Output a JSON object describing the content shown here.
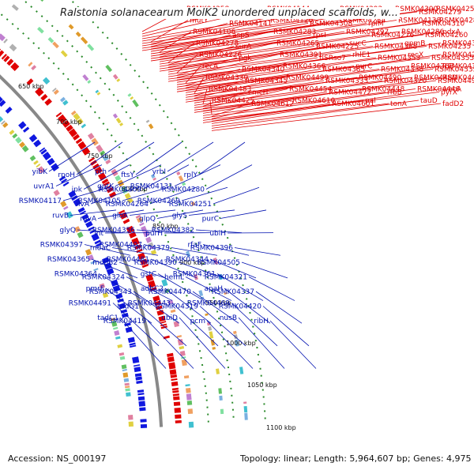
{
  "title": "Ralstonia solanacearum MolK2 unordered unplaced scaffolds, w...",
  "footer": {
    "accession": "Accession: NS_000197",
    "topology": "Topology: linear; Length: 5,964,607 bp; Genes: 4,975"
  },
  "colors": {
    "forward": "#e00000",
    "reverse": "#1018e0",
    "backbone": "#888888",
    "gc_dots": "#2a8a2a",
    "red_label": "#e00000",
    "blue_label": "#0010b0"
  },
  "ticks": [
    "650 kbp",
    "700 kbp",
    "750 kbp",
    "800 kbp",
    "850 kbp",
    "900 kbp",
    "950 kbp",
    "1000 kbp",
    "1050 kbp",
    "1100 kbp"
  ],
  "red_labels": [
    "RSMK04258",
    "RSMK04171",
    "RSMK04144",
    "RSMK04109",
    "RSMK04292",
    "ssb",
    "RSMK04300",
    "RSMK04279",
    "RSMK04253",
    "mutY",
    "RSMK04141",
    "RSMK04120",
    "RSMK04308",
    "RSMK04284",
    "rplM",
    "RSMK04138",
    "RSMK04310",
    "RSMK04281",
    "RSMK04106",
    "aspS",
    "RSMK04283",
    "rpsI",
    "RSMK04297",
    "RSMK04276",
    "RSMK04286",
    "RSMK04260",
    "pdxA",
    "RSMK04278",
    "surA",
    "RSMK04265",
    "RSMK04225",
    "sucC",
    "RSMK04388",
    "gpmB",
    "RSMK04235",
    "RSMK04389",
    "RSMK04226",
    "pgk",
    "RSMK04391",
    "tlSRso7",
    "rhlE1",
    "RSMK04353",
    "recX",
    "RSMK04355",
    "RSMK04208",
    "recA",
    "RSMK04340",
    "RSMK04366",
    "RSMK04385",
    "purC",
    "RSMK04338",
    "RSMK04368",
    "RSMK04335",
    "RSMK04354",
    "RSMK04330",
    "RSMK04345",
    "RSMK04499",
    "RSMK04333",
    "RSMK04490",
    "RSMK04320",
    "RSMK04480",
    "RSMK04495",
    "RSMK04475",
    "RSMK04483",
    "cmcH",
    "RSMK04454",
    "RSMK04472",
    "RSMK04448",
    "rfbB",
    "RSMK04446",
    "pyrX",
    "wecA",
    "RSMK04425",
    "RSMK04612",
    "RSMK04610",
    "RSMK04601",
    "pal",
    "tonA",
    "tauD",
    "fadD2"
  ],
  "blue_labels": [
    "yibK",
    "rpoH",
    "pth",
    "ftsY",
    "yrbI",
    "rplY",
    "uvrA1",
    "ipk",
    "gntK",
    "RSMK04309",
    "RSMK04131",
    "RSMK04280",
    "RSMK04117",
    "ilvA",
    "RSMK04105",
    "RSMK04264",
    "RSMK04269",
    "RSMK04251",
    "ruvB",
    "ruvA",
    "gloA",
    "glpQ",
    "glyS",
    "purC",
    "glyQ",
    "lnt",
    "RSMK04356",
    "purH",
    "RSMK04382",
    "ubiH",
    "RSMK04397",
    "moaC",
    "RSMK04407",
    "RSMK04379",
    "rfaF",
    "RSMK04396",
    "RSMK04365",
    "mobB2",
    "RSMK04481",
    "RSMK04390",
    "RSMK04344",
    "RSMK04505",
    "RSMK04364",
    "RSMK04324",
    "gstC",
    "hemL",
    "RSMK04361",
    "RSMK04321",
    "pmrF",
    "RSMK04343",
    "adhC2",
    "RSMK04470",
    "apaH",
    "RSMK04337",
    "RSMK04491",
    "tadG1",
    "RSMK04443",
    "RSMK04319",
    "RSMK04469",
    "RSMK04420",
    "tadC1",
    "RSMK04419",
    "ubiD",
    "pcm",
    "nusB",
    "ribH"
  ]
}
